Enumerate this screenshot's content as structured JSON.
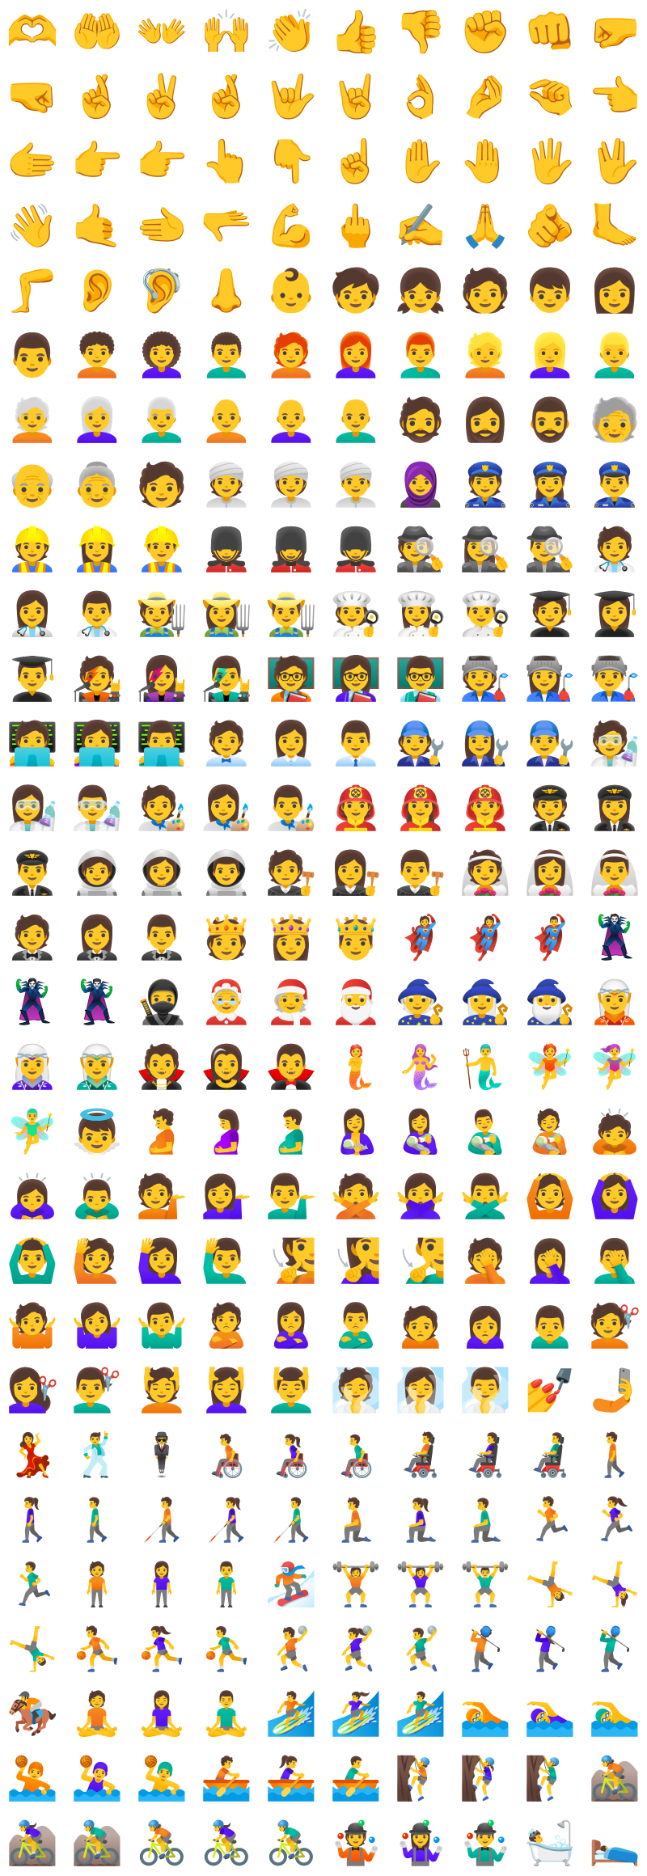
{
  "skin_tone": "#b67b4f",
  "emoji": [
    "🫶",
    "🤲",
    "👐",
    "🙌",
    "👏",
    "👍",
    "👎",
    "✊",
    "👊",
    "🤛",
    "🤜",
    "🤞",
    "✌️",
    "🤞",
    "🤟",
    "🤘",
    "👌",
    "🤌",
    "🤏",
    "👈",
    "🫱",
    "👉",
    "👉",
    "👆",
    "👇",
    "☝️",
    "✋",
    "🤚",
    "🖐️",
    "🖖",
    "👋",
    "🤙",
    "🫲",
    "🫳",
    "💪",
    "🖕",
    "✍️",
    "🙏",
    "🫵",
    "🦶",
    "🦵",
    "👂",
    "🦻",
    "👃",
    "👶",
    "🧒",
    "👧",
    "🧑",
    "👦",
    "👩",
    "👨",
    "🧑‍🦱",
    "👩‍🦱",
    "👨‍🦱",
    "🧑‍🦰",
    "👩‍🦰",
    "👨‍🦰",
    "👱",
    "👱‍♀️",
    "👱‍♂️",
    "🧑‍🦳",
    "👩‍🦳",
    "👨‍🦳",
    "🧑‍🦲",
    "👩‍🦲",
    "👨‍🦲",
    "🧔",
    "🧔‍♀️",
    "🧔‍♂️",
    "🧓",
    "👴",
    "👵",
    "🧑",
    "👳",
    "👳‍♀️",
    "👳‍♂️",
    "🧕",
    "👮",
    "👮‍♀️",
    "👮‍♂️",
    "👷",
    "👷‍♀️",
    "👷‍♂️",
    "💂",
    "💂‍♀️",
    "💂‍♂️",
    "🕵️",
    "🕵️‍♀️",
    "🕵️‍♂️",
    "🧑‍⚕️",
    "👩‍⚕️",
    "👨‍⚕️",
    "🧑‍🌾",
    "👩‍🌾",
    "👨‍🌾",
    "🧑‍🍳",
    "👩‍🍳",
    "👨‍🍳",
    "🧑‍🎓",
    "👩‍🎓",
    "👨‍🎓",
    "🧑‍🎤",
    "👩‍🎤",
    "👨‍🎤",
    "🧑‍🏫",
    "👩‍🏫",
    "👨‍🏫",
    "🧑‍🏭",
    "👩‍🏭",
    "👨‍🏭",
    "🧑‍💻",
    "👩‍💻",
    "👨‍💻",
    "🧑‍💼",
    "👩‍💼",
    "👨‍💼",
    "🧑‍🔧",
    "👩‍🔧",
    "👨‍🔧",
    "🧑‍🔬",
    "👩‍🔬",
    "👨‍🔬",
    "🧑‍🎨",
    "👩‍🎨",
    "👨‍🎨",
    "🧑‍🚒",
    "👩‍🚒",
    "👨‍🚒",
    "🧑‍✈️",
    "👩‍✈️",
    "👨‍✈️",
    "🧑‍🚀",
    "👩‍🚀",
    "👨‍🚀",
    "🧑‍⚖️",
    "👩‍⚖️",
    "👨‍⚖️",
    "👰",
    "👰‍♀️",
    "👰‍♂️",
    "🤵",
    "🤵‍♀️",
    "🤵‍♂️",
    "🫅",
    "👸",
    "🤴",
    "🦸",
    "🦸‍♀️",
    "🦸‍♂️",
    "🦹",
    "🦹‍♀️",
    "🦹‍♂️",
    "🥷",
    "🤶",
    "🧑‍🎄",
    "🎅",
    "🧙",
    "🧙‍♀️",
    "🧙‍♂️",
    "🧝",
    "🧝‍♀️",
    "🧝‍♂️",
    "🧛",
    "🧛‍♀️",
    "🧛‍♂️",
    "🧜",
    "🧜‍♀️",
    "🧜‍♂️",
    "🧚",
    "🧚‍♀️",
    "🧚‍♂️",
    "👼",
    "🫄",
    "🤰",
    "🫃",
    "🤱",
    "👩‍🍼",
    "👨‍🍼",
    "🧑‍🍼",
    "🙇",
    "🙇‍♀️",
    "🙇‍♂️",
    "💁",
    "💁‍♀️",
    "💁‍♂️",
    "🙅",
    "🙅‍♀️",
    "🙅‍♂️",
    "🙆",
    "🙆‍♀️",
    "🙆‍♂️",
    "🙋",
    "🙋‍♀️",
    "🙋‍♂️",
    "🧏",
    "🧏‍♀️",
    "🧏‍♂️",
    "🤦",
    "🤦‍♀️",
    "🤦‍♂️",
    "🤷",
    "🤷‍♀️",
    "🤷‍♂️",
    "🙎",
    "🙎‍♀️",
    "🙎‍♂️",
    "🙍",
    "🙍‍♀️",
    "🙍‍♂️",
    "💇",
    "💇‍♀️",
    "💇‍♂️",
    "💆",
    "💆‍♀️",
    "💆‍♂️",
    "🧖",
    "🧖‍♀️",
    "🧖‍♂️",
    "💅",
    "🤳",
    "💃",
    "🕺",
    "🕴️",
    "🧑‍🦽",
    "👩‍🦽",
    "👨‍🦽",
    "🧑‍🦼",
    "👩‍🦼",
    "👨‍🦼",
    "🚶",
    "🚶‍♀️",
    "🚶‍♂️",
    "🧑‍🦯",
    "👩‍🦯",
    "👨‍🦯",
    "🧎",
    "🧎‍♀️",
    "🧎‍♂️",
    "🏃",
    "🏃‍♀️",
    "🏃‍♂️",
    "🧍",
    "🧍‍♀️",
    "🧍‍♂️",
    "🏂",
    "🏋️",
    "🏋️‍♀️",
    "🏋️‍♂️",
    "🤸",
    "🤸‍♀️",
    "🤸‍♂️",
    "⛹️",
    "⛹️‍♀️",
    "⛹️‍♂️",
    "🤾",
    "🤾‍♀️",
    "🤾‍♂️",
    "🏌️",
    "🏌️‍♀️",
    "🏌️‍♂️",
    "🏇",
    "🧘",
    "🧘‍♀️",
    "🧘‍♂️",
    "🏄",
    "🏄‍♀️",
    "🏄‍♂️",
    "🏊",
    "🏊‍♀️",
    "🏊‍♂️",
    "🤽",
    "🤽‍♀️",
    "🤽‍♂️",
    "🚣",
    "🚣‍♀️",
    "🚣‍♂️",
    "🧗",
    "🧗‍♀️",
    "🧗‍♂️",
    "🚵",
    "🚵‍♀️",
    "🚵‍♂️",
    "🚴",
    "🚴‍♀️",
    "🚴‍♂️",
    "🤹",
    "🤹‍♀️",
    "🤹‍♂️",
    "🛀",
    "🛌"
  ]
}
